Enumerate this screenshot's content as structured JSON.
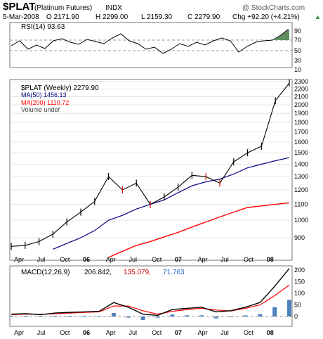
{
  "header": {
    "symbol": "$PLAT",
    "name": "(Platinum Futures)",
    "exchange": "INDX",
    "watermark": "@ StockCharts.com",
    "quote": {
      "date": "5-Mar-2008",
      "open": "O 2171.90",
      "high": "H 2299.00",
      "low": "L 2159.30",
      "close": "C 2279.90",
      "change": "Chg +92.20 (+4.21%)",
      "change_arrow": "▲"
    }
  },
  "rsi_panel": {
    "label": "RSI(14) 93.63",
    "ticks": [
      90,
      70,
      50,
      30,
      10
    ]
  },
  "price_panel": {
    "legend": {
      "price": "$PLAT (Weekly) 2279.90",
      "ma50": "MA(50) 1456.13",
      "ma200": "MA(200) 1110.72",
      "volume": "Volume undef"
    },
    "ticks": [
      2300,
      2200,
      2100,
      2000,
      1900,
      1800,
      1700,
      1600,
      1500,
      1400,
      1300,
      1200,
      1100,
      1000,
      900
    ]
  },
  "macd_panel": {
    "label": "MACD(12,26,9)",
    "values": [
      "206.842,",
      "135.079,",
      "71.763"
    ],
    "ticks": [
      200,
      150,
      100,
      50,
      0
    ]
  },
  "x_axis": {
    "labels": [
      "Apr",
      "Jul",
      "Oct",
      "06",
      "Apr",
      "Jul",
      "Oct",
      "07",
      "Apr",
      "Jul",
      "Oct",
      "08"
    ]
  },
  "colors": {
    "price": "#000000",
    "down": "#cc0000",
    "ma50": "#000080",
    "ma200": "#ff0000",
    "macd": "#000000",
    "signal": "#ff0000",
    "histogram": "#4f81bd",
    "rsi_fill": "#5f8f5f",
    "blue_text": "#1f5fbf",
    "green_text": "#2f8f2f"
  },
  "chart_data": [
    {
      "type": "line",
      "title": "RSI(14) 93.63",
      "ylim": [
        0,
        100
      ],
      "x": [
        "2005-03",
        "2005-05",
        "2005-07",
        "2005-09",
        "2005-11",
        "2006-01",
        "2006-03",
        "2006-05",
        "2006-07",
        "2006-09",
        "2006-11",
        "2007-01",
        "2007-03",
        "2007-05",
        "2007-07",
        "2007-09",
        "2007-11",
        "2008-01",
        "2008-03"
      ],
      "values": [
        63,
        60,
        52,
        70,
        55,
        75,
        60,
        90,
        55,
        45,
        55,
        70,
        62,
        68,
        55,
        45,
        70,
        80,
        93.63
      ]
    },
    {
      "type": "line",
      "title": "$PLAT (Weekly) 2279.90",
      "ylim": [
        800,
        2300
      ],
      "x": [
        "2005-03",
        "2005-05",
        "2005-07",
        "2005-09",
        "2005-11",
        "2006-01",
        "2006-03",
        "2006-05",
        "2006-06",
        "2006-08",
        "2006-10",
        "2006-12",
        "2007-02",
        "2007-04",
        "2007-06",
        "2007-08",
        "2007-10",
        "2007-12",
        "2008-01",
        "2008-02",
        "2008-03"
      ],
      "series": [
        {
          "name": "$PLAT (Weekly) 2279.90",
          "values": [
            855,
            860,
            880,
            920,
            990,
            1050,
            1120,
            1300,
            1200,
            1250,
            1100,
            1150,
            1220,
            1310,
            1300,
            1250,
            1420,
            1500,
            1560,
            2050,
            2280
          ]
        },
        {
          "name": "MA(50) 1456.13",
          "values": [
            null,
            null,
            null,
            840,
            870,
            900,
            940,
            1000,
            1030,
            1070,
            1100,
            1130,
            1180,
            1230,
            1260,
            1280,
            1320,
            1370,
            1400,
            1430,
            1456
          ]
        },
        {
          "name": "MA(200) 1110.72",
          "values": [
            null,
            null,
            null,
            null,
            null,
            null,
            null,
            800,
            830,
            860,
            880,
            905,
            930,
            960,
            990,
            1020,
            1050,
            1080,
            1090,
            1100,
            1111
          ]
        }
      ]
    },
    {
      "type": "line",
      "title": "MACD(12,26,9)",
      "ylim": [
        -20,
        220
      ],
      "x": [
        "2005-03",
        "2005-05",
        "2005-07",
        "2005-09",
        "2005-11",
        "2006-01",
        "2006-03",
        "2006-05",
        "2006-07",
        "2006-09",
        "2006-11",
        "2007-01",
        "2007-03",
        "2007-05",
        "2007-07",
        "2007-09",
        "2007-11",
        "2008-01",
        "2008-02",
        "2008-03"
      ],
      "series": [
        {
          "name": "MACD",
          "values": [
            10,
            12,
            8,
            15,
            18,
            20,
            22,
            60,
            40,
            10,
            5,
            30,
            35,
            40,
            20,
            25,
            40,
            60,
            130,
            206.842
          ]
        },
        {
          "name": "Signal",
          "values": [
            8,
            10,
            9,
            12,
            15,
            18,
            20,
            45,
            45,
            25,
            10,
            22,
            30,
            35,
            28,
            24,
            35,
            50,
            90,
            135.079
          ]
        },
        {
          "name": "Histogram",
          "values": [
            2,
            2,
            -1,
            3,
            3,
            2,
            2,
            15,
            -5,
            -15,
            -5,
            8,
            5,
            5,
            -8,
            1,
            5,
            10,
            40,
            71.763
          ]
        }
      ]
    }
  ]
}
